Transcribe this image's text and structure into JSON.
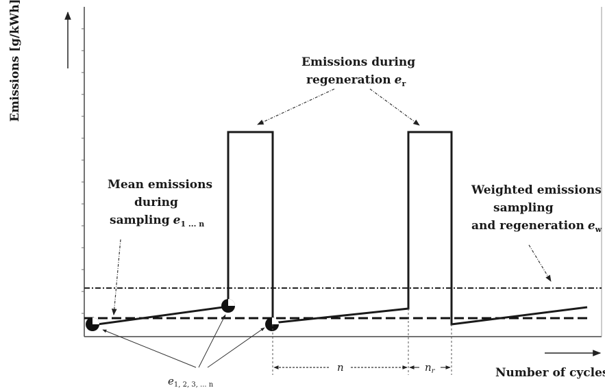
{
  "y_axis_label": "Emissions [g/kWh]",
  "x_axis_label": "Number of cycles",
  "label_regeneration_line1": "Emissions during",
  "label_regeneration_line2": "regeneration",
  "label_regeneration_var": "e",
  "label_regeneration_sub": "r",
  "label_mean_line1": "Mean emissions",
  "label_mean_line2": "during",
  "label_mean_line3": "sampling",
  "label_mean_var": "e",
  "label_mean_sub": "1 ... n",
  "label_weighted_line1": "Weighted emissions of",
  "label_weighted_line2": "sampling",
  "label_weighted_line3": "and regeneration",
  "label_weighted_var": "e",
  "label_weighted_sub": "w",
  "label_points_var": "e",
  "label_points_sub": "1, 2, 3, ... n",
  "interval_n": "n",
  "interval_nr_var": "n",
  "interval_nr_sub": "r"
}
